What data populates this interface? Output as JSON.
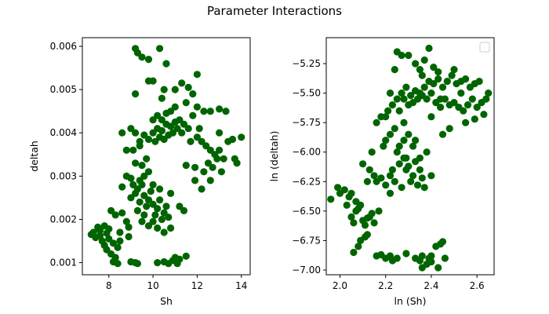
{
  "figure": {
    "title": "Parameter Interactions",
    "marker_color": "#006400",
    "axis_color": "#000000"
  },
  "chart_data": [
    {
      "type": "scatter",
      "xlabel": "Sh",
      "ylabel": "deltah",
      "xlim": [
        6.8,
        14.4
      ],
      "ylim": [
        0.00072,
        0.0062
      ],
      "xticks": [
        8,
        10,
        12,
        14
      ],
      "xtick_labels": [
        "8",
        "10",
        "12",
        "14"
      ],
      "yticks": [
        0.001,
        0.002,
        0.003,
        0.004,
        0.005,
        0.006
      ],
      "ytick_labels": [
        "0.001",
        "0.002",
        "0.003",
        "0.004",
        "0.005",
        "0.006"
      ],
      "legend": null,
      "points": [
        [
          7.2,
          0.00165
        ],
        [
          7.4,
          0.00158
        ],
        [
          7.5,
          0.00182
        ],
        [
          7.6,
          0.00175
        ],
        [
          7.7,
          0.0015
        ],
        [
          7.8,
          0.0014
        ],
        [
          7.9,
          0.0013
        ],
        [
          7.9,
          0.00168
        ],
        [
          8.0,
          0.00155
        ],
        [
          8.1,
          0.0012
        ],
        [
          8.2,
          0.00145
        ],
        [
          8.3,
          0.00112
        ],
        [
          8.4,
          0.00135
        ],
        [
          8.5,
          0.0015
        ],
        [
          7.6,
          0.00162
        ],
        [
          7.8,
          0.00185
        ],
        [
          8.0,
          0.00178
        ],
        [
          7.3,
          0.0017
        ],
        [
          8.2,
          0.00102
        ],
        [
          8.4,
          0.00098
        ],
        [
          8.1,
          0.0022
        ],
        [
          8.3,
          0.0021
        ],
        [
          8.6,
          0.00215
        ],
        [
          8.8,
          0.00195
        ],
        [
          8.9,
          0.00182
        ],
        [
          9.2,
          0.001
        ],
        [
          9.0,
          0.00102
        ],
        [
          9.3,
          0.00098
        ],
        [
          8.9,
          0.0016
        ],
        [
          8.5,
          0.0017
        ],
        [
          9.5,
          0.00195
        ],
        [
          9.8,
          0.00185
        ],
        [
          10.2,
          0.0018
        ],
        [
          10.5,
          0.0017
        ],
        [
          10.8,
          0.0018
        ],
        [
          10.2,
          0.001
        ],
        [
          10.5,
          0.00102
        ],
        [
          10.7,
          0.00098
        ],
        [
          11.0,
          0.00112
        ],
        [
          11.2,
          0.00108
        ],
        [
          11.5,
          0.00115
        ],
        [
          10.9,
          0.00105
        ],
        [
          11.1,
          0.00098
        ],
        [
          9.0,
          0.0025
        ],
        [
          9.2,
          0.0026
        ],
        [
          9.3,
          0.0027
        ],
        [
          9.4,
          0.0024
        ],
        [
          9.5,
          0.0028
        ],
        [
          9.6,
          0.00255
        ],
        [
          9.7,
          0.0023
        ],
        [
          9.8,
          0.00245
        ],
        [
          9.9,
          0.00265
        ],
        [
          10.0,
          0.00235
        ],
        [
          10.1,
          0.0021
        ],
        [
          10.2,
          0.00225
        ],
        [
          10.3,
          0.00245
        ],
        [
          10.4,
          0.002
        ],
        [
          10.5,
          0.00215
        ],
        [
          10.6,
          0.0023
        ],
        [
          10.7,
          0.00205
        ],
        [
          9.4,
          0.0029
        ],
        [
          9.6,
          0.003
        ],
        [
          9.8,
          0.0031
        ],
        [
          9.2,
          0.0033
        ],
        [
          9.5,
          0.00325
        ],
        [
          9.7,
          0.0034
        ],
        [
          10.0,
          0.0028
        ],
        [
          10.3,
          0.0027
        ],
        [
          11.2,
          0.0023
        ],
        [
          11.4,
          0.0022
        ],
        [
          9.1,
          0.0028
        ],
        [
          8.8,
          0.003
        ],
        [
          9.0,
          0.00295
        ],
        [
          8.6,
          0.00275
        ],
        [
          10.8,
          0.0026
        ],
        [
          9.3,
          0.0022
        ],
        [
          9.6,
          0.0021
        ],
        [
          10.0,
          0.00195
        ],
        [
          9.0,
          0.0041
        ],
        [
          9.2,
          0.004
        ],
        [
          9.4,
          0.0038
        ],
        [
          9.6,
          0.00395
        ],
        [
          9.8,
          0.00385
        ],
        [
          10.0,
          0.004
        ],
        [
          10.2,
          0.0041
        ],
        [
          10.4,
          0.00405
        ],
        [
          10.6,
          0.0042
        ],
        [
          10.8,
          0.00415
        ],
        [
          11.0,
          0.00425
        ],
        [
          11.2,
          0.0043
        ],
        [
          11.4,
          0.0042
        ],
        [
          11.6,
          0.0041
        ],
        [
          11.8,
          0.0044
        ],
        [
          10.1,
          0.0038
        ],
        [
          10.3,
          0.0039
        ],
        [
          10.5,
          0.00385
        ],
        [
          10.7,
          0.00395
        ],
        [
          10.9,
          0.004
        ],
        [
          11.1,
          0.0041
        ],
        [
          11.3,
          0.004
        ],
        [
          10.0,
          0.0043
        ],
        [
          10.2,
          0.0044
        ],
        [
          10.4,
          0.0043
        ],
        [
          10.6,
          0.00445
        ],
        [
          10.8,
          0.0045
        ],
        [
          11.0,
          0.0046
        ],
        [
          11.5,
          0.0047
        ],
        [
          12.0,
          0.0046
        ],
        [
          12.3,
          0.0045
        ],
        [
          12.6,
          0.0045
        ],
        [
          13.0,
          0.00455
        ],
        [
          13.3,
          0.0045
        ],
        [
          9.4,
          0.0037
        ],
        [
          9.1,
          0.0036
        ],
        [
          8.6,
          0.004
        ],
        [
          8.8,
          0.0036
        ],
        [
          12.0,
          0.0039
        ],
        [
          12.2,
          0.0038
        ],
        [
          12.4,
          0.0037
        ],
        [
          12.6,
          0.0036
        ],
        [
          12.8,
          0.0035
        ],
        [
          13.0,
          0.0036
        ],
        [
          13.2,
          0.0034
        ],
        [
          13.4,
          0.0038
        ],
        [
          12.5,
          0.0033
        ],
        [
          12.7,
          0.0032
        ],
        [
          12.9,
          0.0034
        ],
        [
          12.3,
          0.0031
        ],
        [
          12.6,
          0.0029
        ],
        [
          13.1,
          0.0031
        ],
        [
          13.7,
          0.0034
        ],
        [
          13.8,
          0.0033
        ],
        [
          14.0,
          0.0039
        ],
        [
          13.6,
          0.00385
        ],
        [
          12.1,
          0.0041
        ],
        [
          11.7,
          0.0038
        ],
        [
          11.9,
          0.0032
        ],
        [
          11.5,
          0.00325
        ],
        [
          11.9,
          0.0029
        ],
        [
          12.2,
          0.0027
        ],
        [
          13.0,
          0.004
        ],
        [
          9.2,
          0.00595
        ],
        [
          9.3,
          0.00585
        ],
        [
          9.5,
          0.00575
        ],
        [
          9.8,
          0.0057
        ],
        [
          10.3,
          0.00595
        ],
        [
          10.6,
          0.0056
        ],
        [
          10.0,
          0.0052
        ],
        [
          9.8,
          0.0052
        ],
        [
          10.5,
          0.005
        ],
        [
          11.0,
          0.005
        ],
        [
          11.3,
          0.00515
        ],
        [
          11.6,
          0.00505
        ],
        [
          12.0,
          0.00535
        ],
        [
          10.4,
          0.0048
        ],
        [
          9.2,
          0.0049
        ],
        [
          11.8,
          0.0049
        ]
      ]
    },
    {
      "type": "scatter",
      "xlabel": "ln (Sh)",
      "ylabel": "ln (deltah)",
      "xlim": [
        1.94,
        2.675
      ],
      "ylim": [
        -7.04,
        -5.03
      ],
      "xticks": [
        2.0,
        2.2,
        2.4,
        2.6
      ],
      "xtick_labels": [
        "2.0",
        "2.2",
        "2.4",
        "2.6"
      ],
      "yticks": [
        -7.0,
        -6.75,
        -6.5,
        -6.25,
        -6.0,
        -5.75,
        -5.5,
        -5.25
      ],
      "ytick_labels": [
        "−7.00",
        "−6.75",
        "−6.50",
        "−6.25",
        "−6.00",
        "−5.75",
        "−5.50",
        "−5.25"
      ],
      "legend": "upper right (empty)",
      "points": [
        [
          1.96,
          -6.4
        ],
        [
          1.99,
          -6.3
        ],
        [
          2.0,
          -6.35
        ],
        [
          2.02,
          -6.32
        ],
        [
          2.03,
          -6.45
        ],
        [
          2.05,
          -6.55
        ],
        [
          2.06,
          -6.6
        ],
        [
          2.07,
          -6.5
        ],
        [
          2.08,
          -6.48
        ],
        [
          2.1,
          -6.58
        ],
        [
          2.12,
          -6.56
        ],
        [
          2.13,
          -6.55
        ],
        [
          2.14,
          -6.52
        ],
        [
          2.05,
          -6.35
        ],
        [
          2.07,
          -6.42
        ],
        [
          2.09,
          -6.45
        ],
        [
          2.04,
          -6.38
        ],
        [
          2.11,
          -6.62
        ],
        [
          2.15,
          -6.6
        ],
        [
          2.17,
          -6.5
        ],
        [
          2.06,
          -6.85
        ],
        [
          2.08,
          -6.8
        ],
        [
          2.09,
          -6.75
        ],
        [
          2.11,
          -6.72
        ],
        [
          2.12,
          -6.7
        ],
        [
          2.16,
          -6.88
        ],
        [
          2.18,
          -6.87
        ],
        [
          2.2,
          -6.9
        ],
        [
          2.22,
          -6.88
        ],
        [
          2.23,
          -6.92
        ],
        [
          2.25,
          -6.9
        ],
        [
          2.29,
          -6.86
        ],
        [
          2.33,
          -6.9
        ],
        [
          2.35,
          -6.92
        ],
        [
          2.36,
          -6.88
        ],
        [
          2.38,
          -6.95
        ],
        [
          2.39,
          -6.9
        ],
        [
          2.4,
          -6.88
        ],
        [
          2.42,
          -6.8
        ],
        [
          2.44,
          -6.78
        ],
        [
          2.45,
          -6.76
        ],
        [
          2.46,
          -6.9
        ],
        [
          2.43,
          -6.98
        ],
        [
          2.36,
          -6.98
        ],
        [
          2.4,
          -6.93
        ],
        [
          2.1,
          -6.1
        ],
        [
          2.13,
          -6.15
        ],
        [
          2.15,
          -6.2
        ],
        [
          2.16,
          -6.25
        ],
        [
          2.18,
          -6.22
        ],
        [
          2.2,
          -6.28
        ],
        [
          2.22,
          -6.2
        ],
        [
          2.23,
          -6.15
        ],
        [
          2.24,
          -6.25
        ],
        [
          2.26,
          -6.1
        ],
        [
          2.28,
          -6.05
        ],
        [
          2.29,
          -6.15
        ],
        [
          2.3,
          -6.12
        ],
        [
          2.32,
          -6.2
        ],
        [
          2.33,
          -6.08
        ],
        [
          2.35,
          -6.15
        ],
        [
          2.36,
          -6.22
        ],
        [
          2.34,
          -6.28
        ],
        [
          2.31,
          -6.25
        ],
        [
          2.27,
          -6.3
        ],
        [
          2.25,
          -6.0
        ],
        [
          2.26,
          -5.95
        ],
        [
          2.28,
          -5.9
        ],
        [
          2.3,
          -5.85
        ],
        [
          2.32,
          -5.95
        ],
        [
          2.33,
          -5.9
        ],
        [
          2.24,
          -5.8
        ],
        [
          2.22,
          -5.85
        ],
        [
          2.2,
          -5.9
        ],
        [
          2.18,
          -5.7
        ],
        [
          2.16,
          -5.75
        ],
        [
          2.21,
          -5.65
        ],
        [
          2.23,
          -5.6
        ],
        [
          2.25,
          -5.55
        ],
        [
          2.27,
          -5.5
        ],
        [
          2.29,
          -5.45
        ],
        [
          2.31,
          -5.52
        ],
        [
          2.33,
          -5.48
        ],
        [
          2.35,
          -5.5
        ],
        [
          2.37,
          -5.45
        ],
        [
          2.39,
          -5.4
        ],
        [
          2.41,
          -5.42
        ],
        [
          2.43,
          -5.38
        ],
        [
          2.45,
          -5.45
        ],
        [
          2.47,
          -5.4
        ],
        [
          2.49,
          -5.35
        ],
        [
          2.51,
          -5.42
        ],
        [
          2.53,
          -5.4
        ],
        [
          2.55,
          -5.38
        ],
        [
          2.57,
          -5.45
        ],
        [
          2.59,
          -5.42
        ],
        [
          2.61,
          -5.4
        ],
        [
          2.28,
          -5.55
        ],
        [
          2.3,
          -5.6
        ],
        [
          2.32,
          -5.58
        ],
        [
          2.34,
          -5.55
        ],
        [
          2.36,
          -5.52
        ],
        [
          2.38,
          -5.55
        ],
        [
          2.4,
          -5.5
        ],
        [
          2.42,
          -5.58
        ],
        [
          2.44,
          -5.62
        ],
        [
          2.46,
          -5.55
        ],
        [
          2.48,
          -5.6
        ],
        [
          2.5,
          -5.58
        ],
        [
          2.52,
          -5.62
        ],
        [
          2.54,
          -5.65
        ],
        [
          2.56,
          -5.6
        ],
        [
          2.58,
          -5.55
        ],
        [
          2.6,
          -5.62
        ],
        [
          2.62,
          -5.58
        ],
        [
          2.64,
          -5.55
        ],
        [
          2.65,
          -5.5
        ],
        [
          2.63,
          -5.68
        ],
        [
          2.59,
          -5.72
        ],
        [
          2.55,
          -5.75
        ],
        [
          2.25,
          -5.15
        ],
        [
          2.27,
          -5.18
        ],
        [
          2.3,
          -5.18
        ],
        [
          2.33,
          -5.25
        ],
        [
          2.35,
          -5.3
        ],
        [
          2.37,
          -5.22
        ],
        [
          2.39,
          -5.12
        ],
        [
          2.41,
          -5.28
        ],
        [
          2.43,
          -5.32
        ],
        [
          2.36,
          -5.35
        ],
        [
          2.24,
          -5.3
        ],
        [
          2.22,
          -5.5
        ],
        [
          2.2,
          -5.7
        ],
        [
          2.48,
          -5.8
        ],
        [
          2.45,
          -5.85
        ],
        [
          2.4,
          -5.7
        ],
        [
          2.38,
          -6.0
        ],
        [
          2.35,
          -6.05
        ],
        [
          2.28,
          -5.75
        ],
        [
          2.19,
          -5.95
        ],
        [
          2.14,
          -6.0
        ],
        [
          2.4,
          -6.2
        ],
        [
          2.37,
          -6.3
        ],
        [
          2.12,
          -6.25
        ],
        [
          2.5,
          -5.3
        ],
        [
          2.29,
          -6.05
        ],
        [
          2.44,
          -5.55
        ],
        [
          2.26,
          -5.65
        ],
        [
          2.53,
          -5.5
        ],
        [
          2.22,
          -6.35
        ]
      ]
    }
  ]
}
